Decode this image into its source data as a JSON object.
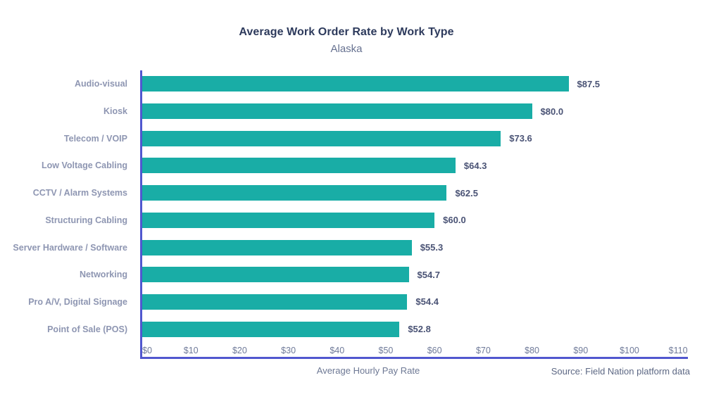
{
  "chart_data": {
    "type": "bar",
    "orientation": "horizontal",
    "title": "Average Work Order Rate by Work Type",
    "subtitle": "Alaska",
    "categories": [
      "Audio-visual",
      "Kiosk",
      "Telecom / VOIP",
      "Low Voltage Cabling",
      "CCTV / Alarm Systems",
      "Structuring Cabling",
      "Server Hardware / Software",
      "Networking",
      "Pro A/V, Digital Signage",
      "Point of Sale (POS)"
    ],
    "values": [
      87.5,
      80.0,
      73.6,
      64.3,
      62.5,
      60.0,
      55.3,
      54.7,
      54.4,
      52.8
    ],
    "value_labels": [
      "$87.5",
      "$80.0",
      "$73.6",
      "$64.3",
      "$62.5",
      "$60.0",
      "$55.3",
      "$54.7",
      "$54.4",
      "$52.8"
    ],
    "xlabel": "Average Hourly Pay Rate",
    "xlim": [
      0,
      112
    ],
    "xtick_values": [
      0,
      10,
      20,
      30,
      40,
      50,
      60,
      70,
      80,
      90,
      100,
      110
    ],
    "xtick_labels": [
      "$0",
      "$10",
      "$20",
      "$30",
      "$40",
      "$50",
      "$60",
      "$70",
      "$80",
      "$90",
      "$100",
      "$110"
    ],
    "grid": false,
    "legend": false,
    "bar_color": "#19ada6",
    "axis_color": "#5157cf",
    "source": "Source: Field Nation platform data"
  }
}
